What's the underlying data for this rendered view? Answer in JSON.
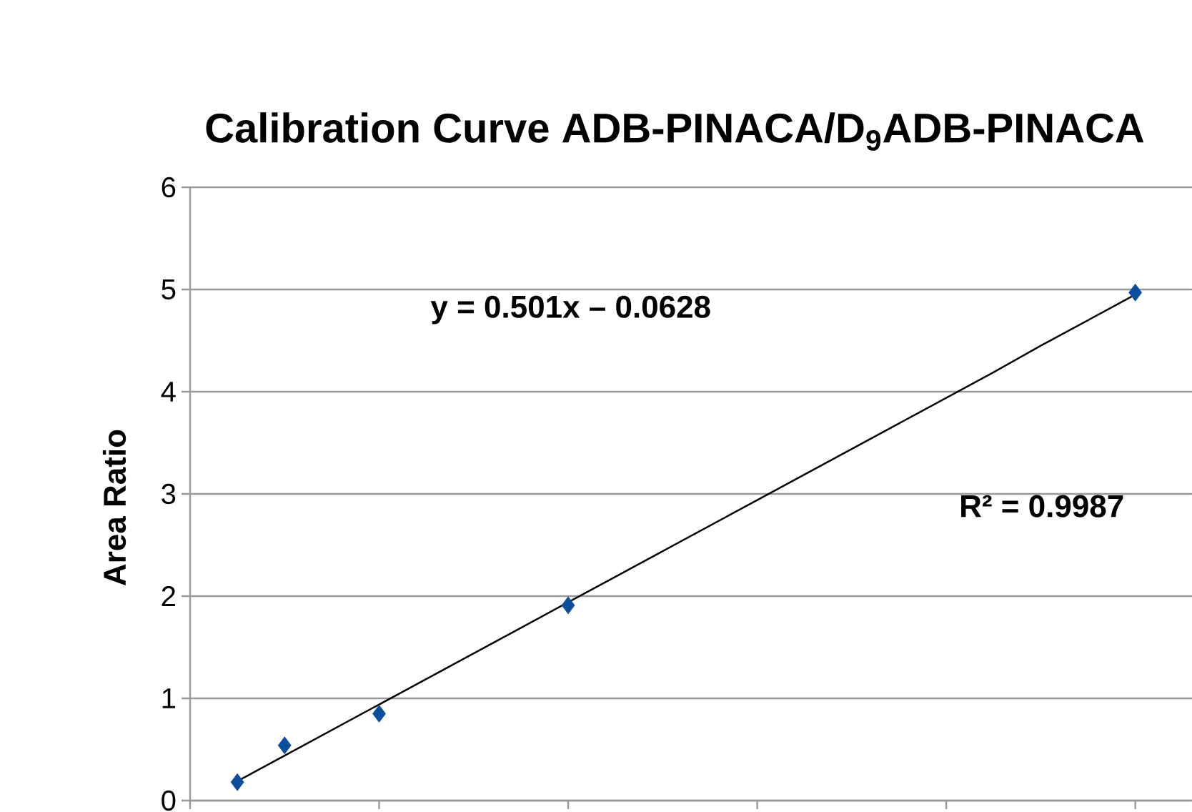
{
  "chart_data": {
    "type": "scatter",
    "title": "Calibration Curve ADB-PINACA/D$_{9}$ADB-PINACA",
    "ylabel": "Area Ratio",
    "annotations": [
      "y = 0.501x – 0.0628",
      "R² = 0.9987"
    ],
    "categories": [
      null,
      null,
      null,
      null,
      null,
      null,
      null,
      null,
      null,
      null,
      null,
      null,
      null,
      null,
      null,
      null,
      null,
      null,
      null,
      null,
      null
    ],
    "series": [
      {
        "color": "#0b4f9c",
        "marker": "diamond",
        "values": [
          null,
          0.18,
          0.54,
          null,
          0.85,
          null,
          null,
          null,
          1.91,
          null,
          null,
          null,
          null,
          null,
          null,
          null,
          null,
          null,
          null,
          null,
          4.97
        ]
      },
      {
        "type": "line",
        "color": "#000000",
        "marker": "none",
        "line_style": "solid",
        "values": [
          null,
          0.19,
          0.44,
          0.69,
          0.94,
          1.19,
          1.44,
          1.69,
          1.94,
          2.19,
          2.44,
          2.69,
          2.94,
          3.19,
          3.44,
          3.69,
          3.94,
          4.19,
          4.45,
          4.7,
          4.95
        ]
      }
    ],
    "ylim": [
      0,
      6
    ],
    "yticks": [
      0,
      1,
      2,
      3,
      4,
      5,
      6
    ],
    "grid": "y"
  }
}
